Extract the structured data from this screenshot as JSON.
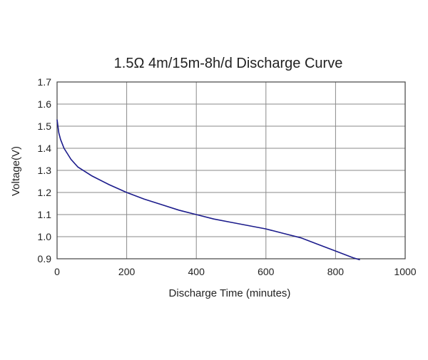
{
  "chart_data": {
    "type": "line",
    "title": "1.5Ω 4m/15m-8h/d Discharge Curve",
    "xlabel": "Discharge Time (minutes)",
    "ylabel": "Voltage(V)",
    "xlim": [
      0,
      1000
    ],
    "ylim": [
      0.9,
      1.7
    ],
    "x_ticks": [
      0,
      200,
      400,
      600,
      800,
      1000
    ],
    "y_ticks": [
      0.9,
      1.0,
      1.1,
      1.2,
      1.3,
      1.4,
      1.5,
      1.6,
      1.7
    ],
    "x_tick_labels": [
      "0",
      "200",
      "400",
      "600",
      "800",
      "1000"
    ],
    "y_tick_labels": [
      "0.9",
      "1.0",
      "1.1",
      "1.2",
      "1.3",
      "1.4",
      "1.5",
      "1.6",
      "1.7"
    ],
    "grid": true,
    "legend": "none",
    "colors": {
      "line": "#1c1c8c",
      "grid": "#8a8a8a",
      "frame": "#444444"
    },
    "series": [
      {
        "x": [
          0,
          5,
          10,
          20,
          30,
          40,
          60,
          80,
          100,
          150,
          200,
          250,
          300,
          350,
          400,
          450,
          500,
          550,
          600,
          650,
          700,
          750,
          800,
          850,
          870
        ],
        "y": [
          1.53,
          1.47,
          1.44,
          1.4,
          1.375,
          1.35,
          1.315,
          1.295,
          1.275,
          1.235,
          1.2,
          1.17,
          1.145,
          1.12,
          1.1,
          1.08,
          1.065,
          1.05,
          1.035,
          1.015,
          0.995,
          0.965,
          0.935,
          0.905,
          0.895
        ]
      }
    ]
  }
}
